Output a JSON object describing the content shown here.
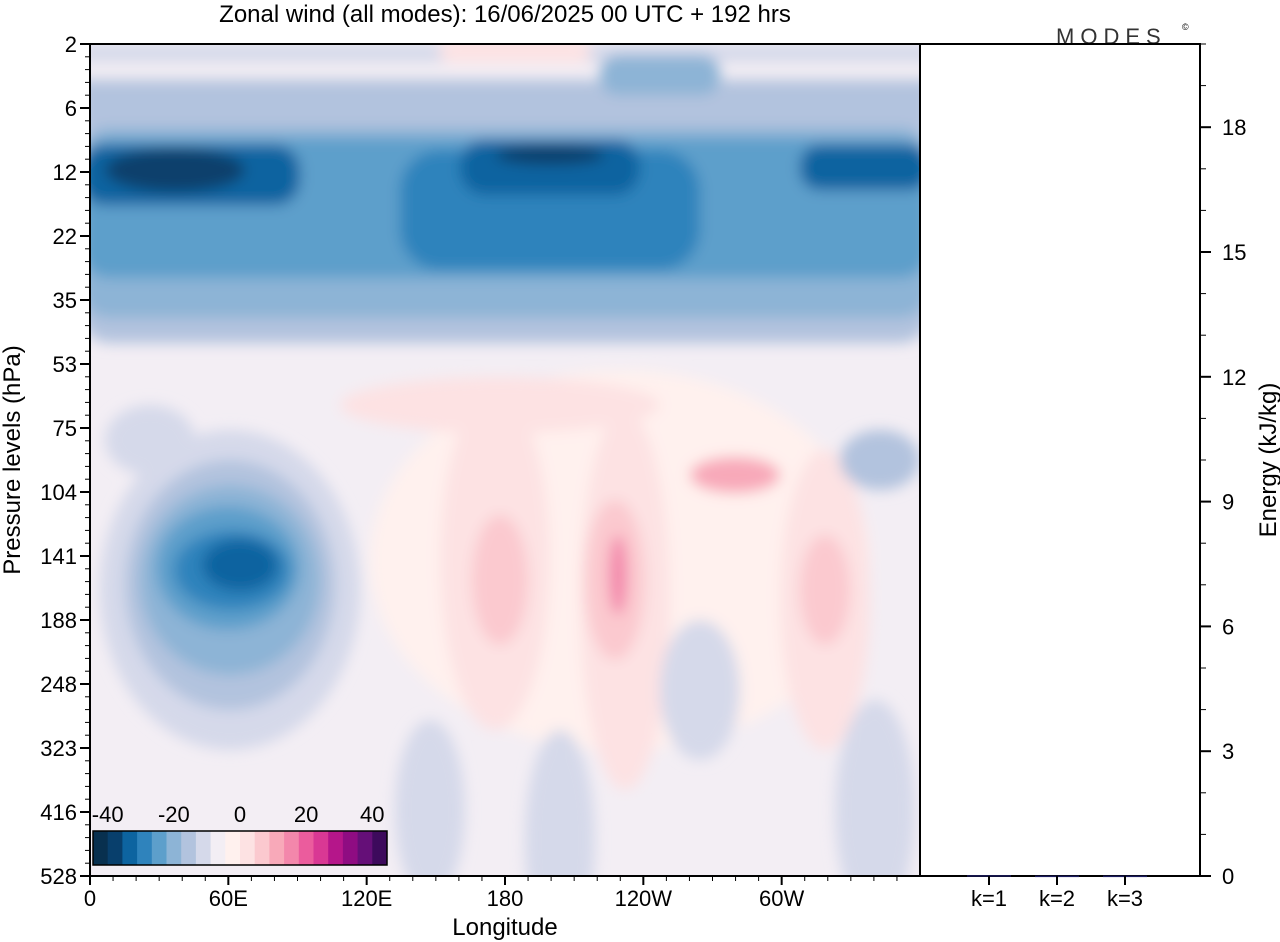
{
  "chart_data": {
    "type": "heatmap",
    "title": "Zonal wind (all modes):  16/06/2025  00 UTC  + 192 hrs",
    "brand": "MODES",
    "brand_mark": "©",
    "xlabel": "Longitude",
    "ylabel": "Pressure levels (hPa)",
    "y2label": "Energy (kJ/kg)",
    "x_ticks": [
      "0",
      "60E",
      "120E",
      "180",
      "120W",
      "60W"
    ],
    "y_levels": [
      "2",
      "6",
      "12",
      "22",
      "35",
      "53",
      "75",
      "104",
      "141",
      "188",
      "248",
      "323",
      "416",
      "528"
    ],
    "y2_ticks": [
      "0",
      "3",
      "6",
      "9",
      "12",
      "15",
      "18"
    ],
    "y2_range": [
      0,
      20
    ],
    "x_range_deg": [
      0,
      360
    ],
    "colorbar": {
      "ticks": [
        "-40",
        "-20",
        "0",
        "20",
        "40"
      ],
      "colors": [
        "#08304f",
        "#083f6c",
        "#0d64a0",
        "#2f83bc",
        "#5d9fcb",
        "#8db4d6",
        "#b2c3de",
        "#d5d9ea",
        "#f3eef4",
        "#fff1ee",
        "#fde2e3",
        "#fbc9cf",
        "#f8a9b9",
        "#f387ab",
        "#eb5c9d",
        "#d93894",
        "#b5168a",
        "#8f0c82",
        "#650f78",
        "#3d0a5c"
      ]
    },
    "bar_categories": [
      "k=1",
      "k=2",
      "k=3"
    ],
    "bar_values": [
      0.02,
      0.01,
      0.01
    ],
    "wind_field_regions": [
      {
        "lon": [
          5,
          80
        ],
        "level": [
          10,
          15
        ],
        "value": -34
      },
      {
        "lon": [
          140,
          210
        ],
        "level": [
          10,
          14
        ],
        "value": -36
      },
      {
        "lon": [
          0,
          355
        ],
        "level": [
          9,
          25
        ],
        "value": -25
      },
      {
        "lon": [
          0,
          355
        ],
        "level": [
          7,
          32
        ],
        "value": -15
      },
      {
        "lon": [
          40,
          85
        ],
        "level": [
          120,
          170
        ],
        "value": -36
      },
      {
        "lon": [
          30,
          95
        ],
        "level": [
          100,
          260
        ],
        "value": -20
      },
      {
        "lon": [
          200,
          215
        ],
        "level": [
          120,
          210
        ],
        "value": 20
      },
      {
        "lon": [
          170,
          240
        ],
        "level": [
          55,
          250
        ],
        "value": 6
      },
      {
        "lon": [
          265,
          290
        ],
        "level": [
          115,
          190
        ],
        "value": 14
      },
      {
        "lon": [
          260,
          290
        ],
        "level": [
          80,
          105
        ],
        "value": 12
      }
    ]
  }
}
